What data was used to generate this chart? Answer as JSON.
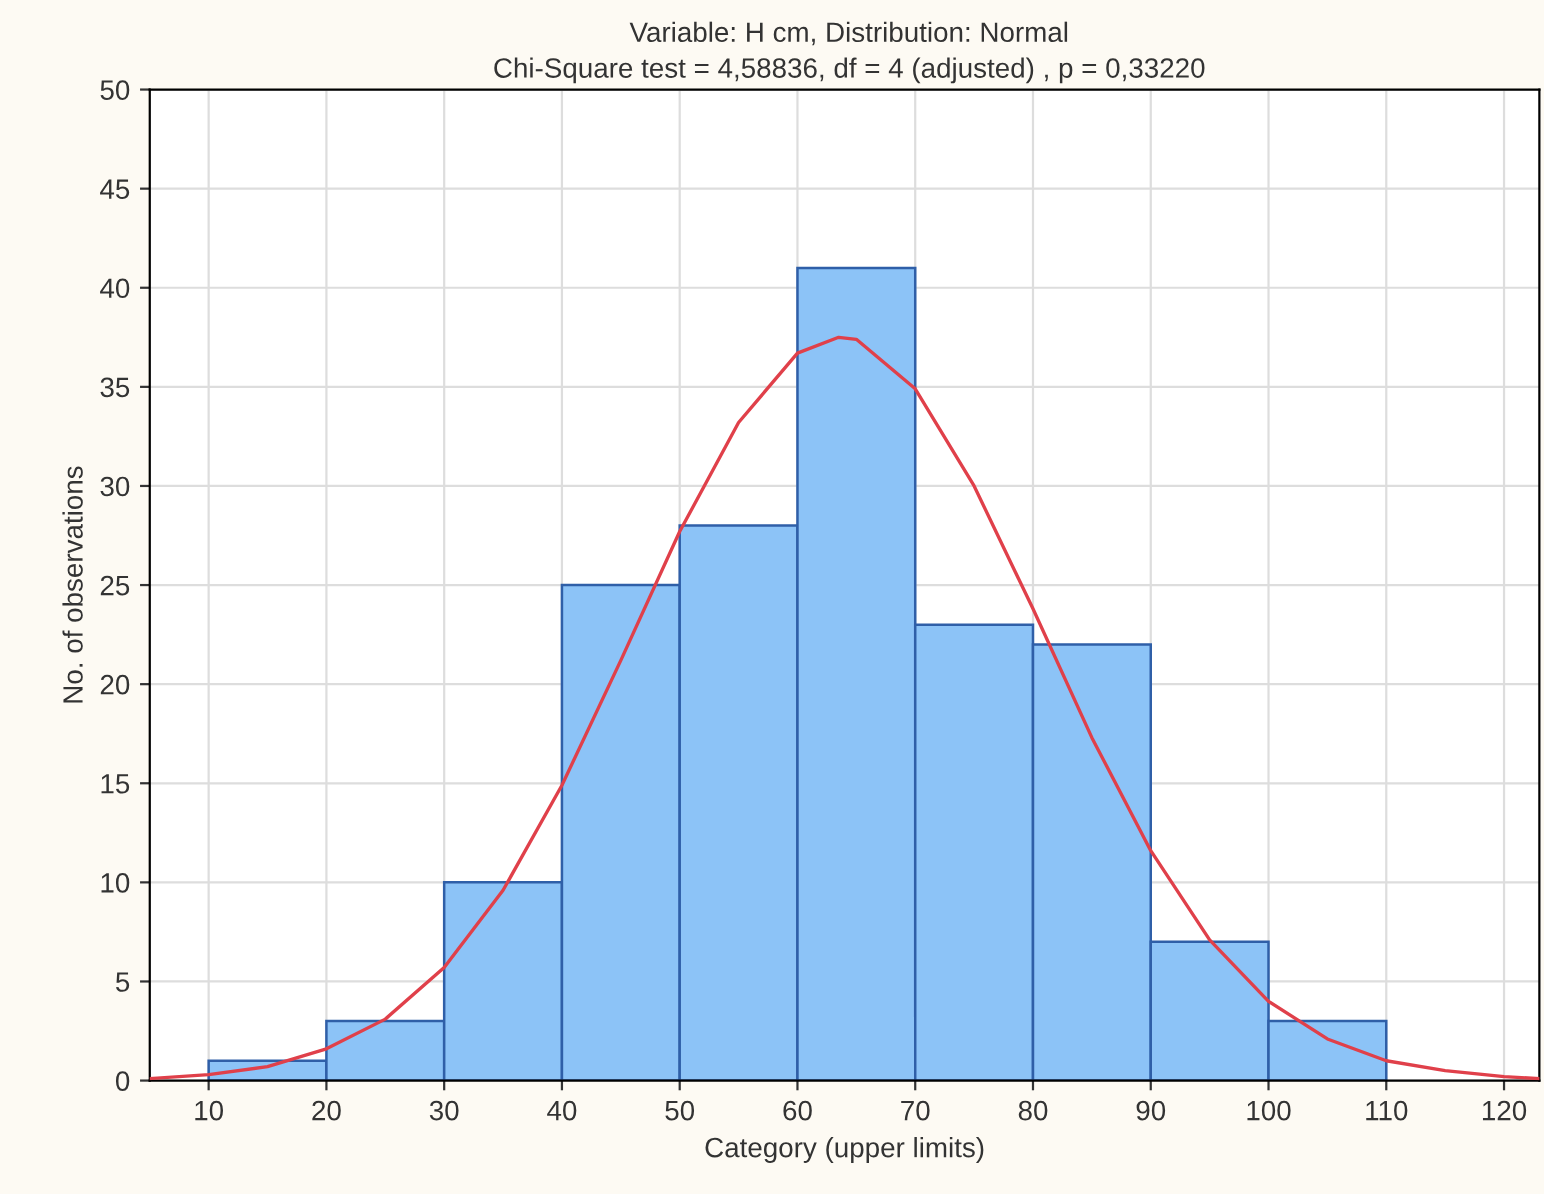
{
  "chart_data": {
    "type": "histogram",
    "title": "Variable: H cm, Distribution: Normal",
    "subtitle": "Chi-Square test = 4,58836, df = 4 (adjusted) , p = 0,33220",
    "xlabel": "Category (upper limits)",
    "ylabel": "No. of observations",
    "bins": [
      10,
      20,
      30,
      40,
      50,
      60,
      70,
      80,
      90,
      100,
      110
    ],
    "values": [
      1,
      3,
      10,
      25,
      28,
      41,
      23,
      22,
      7,
      3
    ],
    "color": "#8cc3f7",
    "series": [
      {
        "type": "line",
        "color": "#e0404a",
        "x": [
          5,
          10,
          15,
          20,
          25,
          30,
          35,
          40,
          45,
          50,
          55,
          60,
          63.5,
          65,
          70,
          75,
          80,
          85,
          90,
          95,
          100,
          105,
          110,
          115,
          120,
          123
        ],
        "values": [
          0.1,
          0.3,
          0.7,
          1.6,
          3.1,
          5.7,
          9.6,
          14.9,
          21.2,
          27.7,
          33.2,
          36.7,
          37.5,
          37.4,
          34.9,
          30.0,
          23.8,
          17.3,
          11.6,
          7.1,
          4.0,
          2.1,
          1.0,
          0.5,
          0.2,
          0.1
        ]
      }
    ],
    "xlim": [
      5,
      123
    ],
    "ylim": [
      0,
      50
    ],
    "xticks": [
      10,
      20,
      30,
      40,
      50,
      60,
      70,
      80,
      90,
      100,
      110,
      120
    ],
    "yticks": [
      0,
      5,
      10,
      15,
      20,
      25,
      30,
      35,
      40,
      45,
      50
    ],
    "grid": true
  }
}
